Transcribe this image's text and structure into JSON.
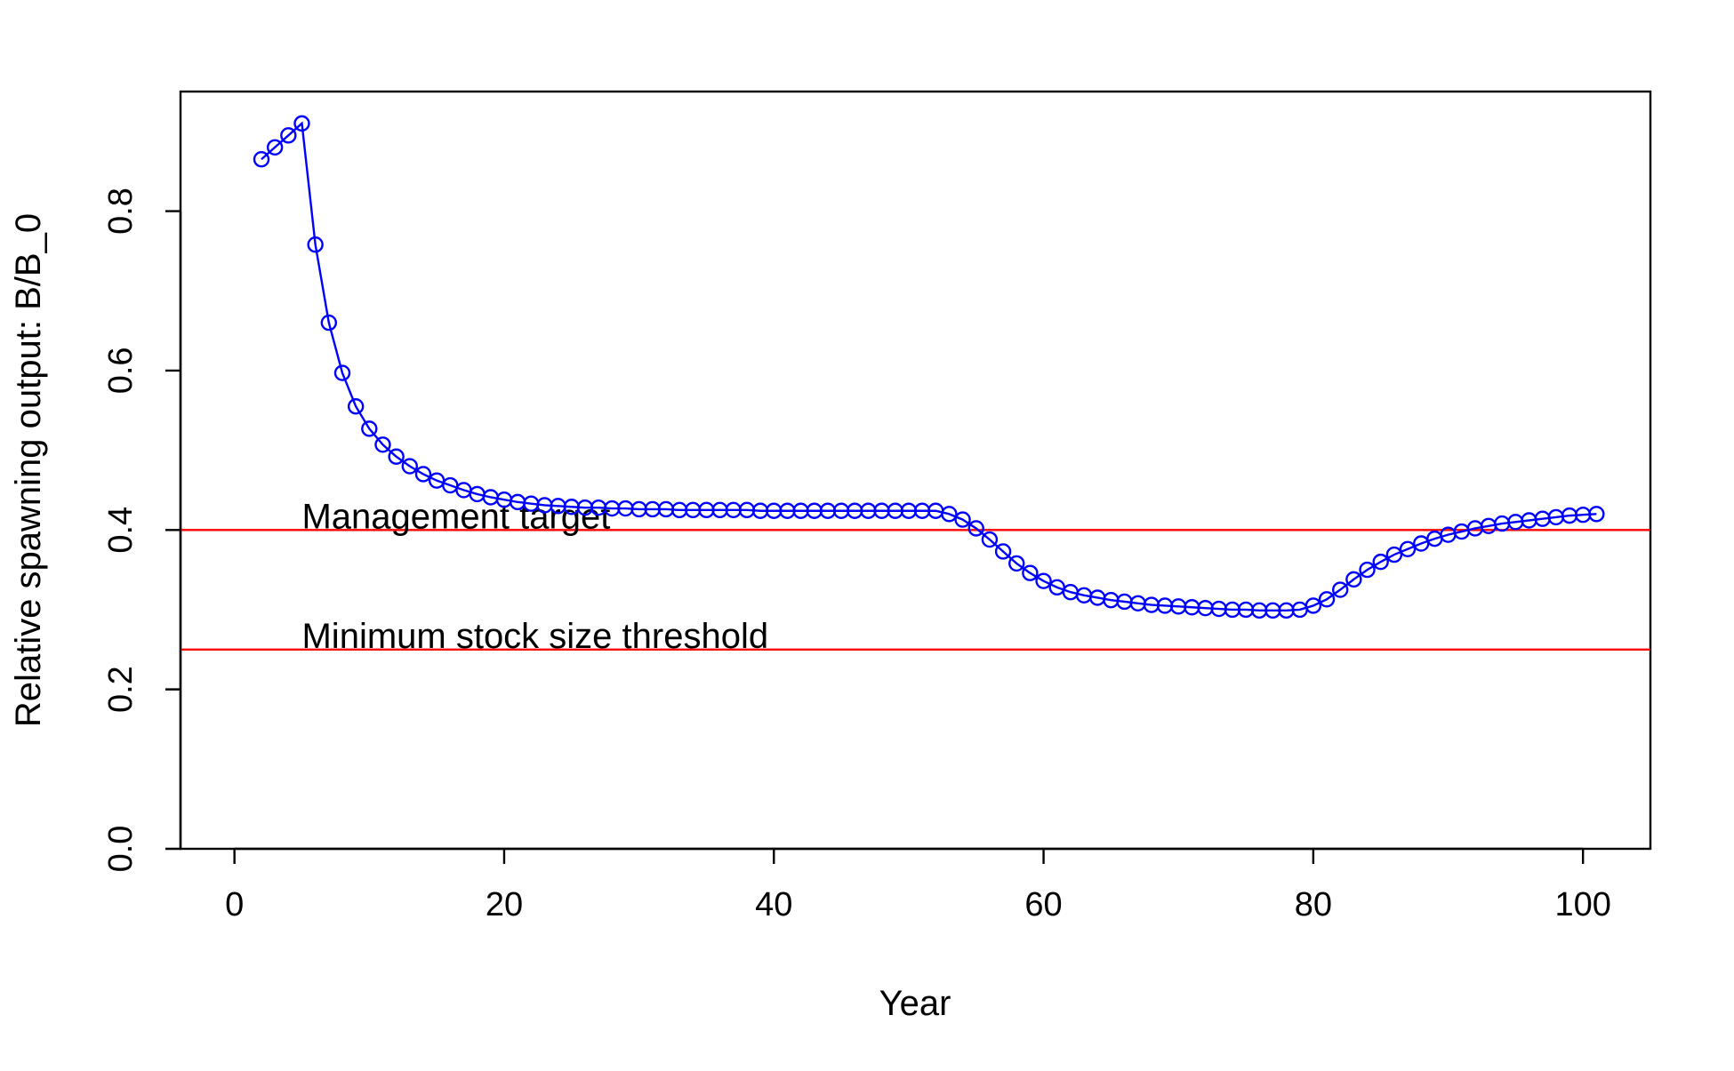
{
  "chart_data": {
    "type": "line",
    "title": "",
    "xlabel": "Year",
    "ylabel": "Relative spawning output: B/B_0",
    "xlim": [
      -4,
      105
    ],
    "ylim": [
      0,
      0.95
    ],
    "x_ticks": [
      0,
      20,
      40,
      60,
      80,
      100
    ],
    "x_tick_labels": [
      "0",
      "20",
      "40",
      "60",
      "80",
      "100"
    ],
    "y_ticks": [
      0.0,
      0.2,
      0.4,
      0.6,
      0.8
    ],
    "y_tick_labels": [
      "0.0",
      "0.2",
      "0.4",
      "0.6",
      "0.8"
    ],
    "grid": false,
    "legend": "none",
    "series": [
      {
        "color": "#0000ff",
        "marker": "open-circle",
        "x": [
          2,
          3,
          4,
          5,
          6,
          7,
          8,
          9,
          10,
          11,
          12,
          13,
          14,
          15,
          16,
          17,
          18,
          19,
          20,
          21,
          22,
          23,
          24,
          25,
          26,
          27,
          28,
          29,
          30,
          31,
          32,
          33,
          34,
          35,
          36,
          37,
          38,
          39,
          40,
          41,
          42,
          43,
          44,
          45,
          46,
          47,
          48,
          49,
          50,
          51,
          52,
          53,
          54,
          55,
          56,
          57,
          58,
          59,
          60,
          61,
          62,
          63,
          64,
          65,
          66,
          67,
          68,
          69,
          70,
          71,
          72,
          73,
          74,
          75,
          76,
          77,
          78,
          79,
          80,
          81,
          82,
          83,
          84,
          85,
          86,
          87,
          88,
          89,
          90,
          91,
          92,
          93,
          94,
          95,
          96,
          97,
          98,
          99,
          100,
          101
        ],
        "y": [
          0.865,
          0.88,
          0.895,
          0.91,
          0.758,
          0.66,
          0.597,
          0.555,
          0.527,
          0.507,
          0.492,
          0.48,
          0.47,
          0.462,
          0.456,
          0.45,
          0.445,
          0.441,
          0.438,
          0.435,
          0.433,
          0.431,
          0.43,
          0.429,
          0.428,
          0.428,
          0.427,
          0.427,
          0.426,
          0.426,
          0.426,
          0.425,
          0.425,
          0.425,
          0.425,
          0.425,
          0.425,
          0.424,
          0.424,
          0.424,
          0.424,
          0.424,
          0.424,
          0.424,
          0.424,
          0.424,
          0.424,
          0.424,
          0.424,
          0.424,
          0.424,
          0.42,
          0.413,
          0.402,
          0.388,
          0.373,
          0.358,
          0.346,
          0.336,
          0.328,
          0.322,
          0.318,
          0.315,
          0.312,
          0.31,
          0.308,
          0.306,
          0.305,
          0.304,
          0.303,
          0.302,
          0.301,
          0.3,
          0.3,
          0.299,
          0.299,
          0.299,
          0.3,
          0.305,
          0.313,
          0.325,
          0.338,
          0.35,
          0.36,
          0.369,
          0.376,
          0.383,
          0.389,
          0.394,
          0.398,
          0.402,
          0.405,
          0.408,
          0.41,
          0.412,
          0.414,
          0.416,
          0.418,
          0.419,
          0.42
        ]
      }
    ],
    "reference_lines": [
      {
        "y": 0.4,
        "color": "#ff0000",
        "label": "Management target",
        "label_x": 5
      },
      {
        "y": 0.25,
        "color": "#ff0000",
        "label": "Minimum stock size threshold",
        "label_x": 5
      }
    ]
  }
}
